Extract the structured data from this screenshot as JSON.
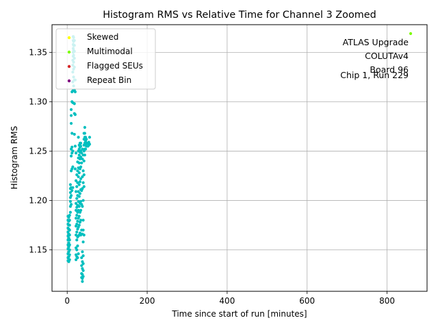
{
  "chart_data": {
    "type": "scatter",
    "title": "Histogram RMS vs Relative Time for Channel 3 Zoomed",
    "xlabel": "Time since start of run [minutes]",
    "ylabel": "Histogram RMS",
    "xlim": [
      -38,
      900
    ],
    "ylim": [
      1.108,
      1.378
    ],
    "xticks": [
      0,
      200,
      400,
      600,
      800
    ],
    "yticks": [
      1.15,
      1.2,
      1.25,
      1.3,
      1.35
    ],
    "xtick_labels": [
      "0",
      "200",
      "400",
      "600",
      "800"
    ],
    "ytick_labels": [
      "1.15",
      "1.20",
      "1.25",
      "1.30",
      "1.35"
    ],
    "grid": true,
    "legend_position": "top-left",
    "legend": [
      {
        "label": "Skewed",
        "color": "#ffff00"
      },
      {
        "label": "Multimodal",
        "color": "#7cfc00"
      },
      {
        "label": "Flagged SEUs",
        "color": "#d62728"
      },
      {
        "label": "Repeat Bin",
        "color": "#800080"
      }
    ],
    "annotation": [
      "ATLAS Upgrade",
      "COLUTAv4",
      "Board 96",
      "Chip 1, Run 229"
    ],
    "series": [
      {
        "color": "#00bfbf",
        "points": [
          [
            2,
            1.139
          ],
          [
            2,
            1.142
          ],
          [
            2,
            1.146
          ],
          [
            2,
            1.151
          ],
          [
            2,
            1.155
          ],
          [
            2,
            1.16
          ],
          [
            2,
            1.164
          ],
          [
            2,
            1.168
          ],
          [
            2,
            1.172
          ],
          [
            2,
            1.176
          ],
          [
            2,
            1.18
          ],
          [
            2,
            1.184
          ],
          [
            4,
            1.138
          ],
          [
            4,
            1.143
          ],
          [
            4,
            1.148
          ],
          [
            4,
            1.153
          ],
          [
            4,
            1.157
          ],
          [
            4,
            1.162
          ],
          [
            4,
            1.166
          ],
          [
            4,
            1.171
          ],
          [
            4,
            1.175
          ],
          [
            4,
            1.179
          ],
          [
            4,
            1.183
          ],
          [
            6,
            1.14
          ],
          [
            6,
            1.145
          ],
          [
            6,
            1.15
          ],
          [
            6,
            1.155
          ],
          [
            6,
            1.16
          ],
          [
            6,
            1.165
          ],
          [
            6,
            1.17
          ],
          [
            6,
            1.175
          ],
          [
            6,
            1.18
          ],
          [
            6,
            1.185
          ],
          [
            8,
            1.188
          ],
          [
            8,
            1.194
          ],
          [
            8,
            1.199
          ],
          [
            8,
            1.203
          ],
          [
            8,
            1.208
          ],
          [
            8,
            1.212
          ],
          [
            8,
            1.216
          ],
          [
            10,
            1.196
          ],
          [
            10,
            1.205
          ],
          [
            10,
            1.213
          ],
          [
            10,
            1.23
          ],
          [
            10,
            1.245
          ],
          [
            10,
            1.252
          ],
          [
            10,
            1.278
          ],
          [
            10,
            1.286
          ],
          [
            10,
            1.292
          ],
          [
            12,
            1.21
          ],
          [
            12,
            1.232
          ],
          [
            12,
            1.248
          ],
          [
            12,
            1.254
          ],
          [
            12,
            1.268
          ],
          [
            12,
            1.3
          ],
          [
            12,
            1.31
          ],
          [
            14,
            1.213
          ],
          [
            14,
            1.234
          ],
          [
            14,
            1.25
          ],
          [
            14,
            1.299
          ],
          [
            14,
            1.311
          ],
          [
            14,
            1.32
          ],
          [
            14,
            1.33
          ],
          [
            14,
            1.337
          ],
          [
            14,
            1.342
          ],
          [
            15,
            1.346
          ],
          [
            15,
            1.35
          ],
          [
            15,
            1.354
          ],
          [
            15,
            1.358
          ],
          [
            15,
            1.362
          ],
          [
            15,
            1.366
          ],
          [
            16,
            1.316
          ],
          [
            16,
            1.325
          ],
          [
            16,
            1.333
          ],
          [
            16,
            1.34
          ],
          [
            16,
            1.347
          ],
          [
            16,
            1.352
          ],
          [
            16,
            1.357
          ],
          [
            16,
            1.361
          ],
          [
            16,
            1.365
          ],
          [
            18,
            1.267
          ],
          [
            18,
            1.288
          ],
          [
            18,
            1.298
          ],
          [
            18,
            1.312
          ],
          [
            18,
            1.322
          ],
          [
            18,
            1.335
          ],
          [
            18,
            1.344
          ],
          [
            18,
            1.351
          ],
          [
            18,
            1.357
          ],
          [
            18,
            1.362
          ],
          [
            20,
            1.232
          ],
          [
            20,
            1.255
          ],
          [
            20,
            1.287
          ],
          [
            20,
            1.31
          ],
          [
            20,
            1.322
          ],
          [
            22,
            1.14
          ],
          [
            22,
            1.145
          ],
          [
            22,
            1.152
          ],
          [
            22,
            1.165
          ],
          [
            22,
            1.174
          ],
          [
            22,
            1.182
          ],
          [
            22,
            1.19
          ],
          [
            22,
            1.197
          ],
          [
            22,
            1.209
          ],
          [
            22,
            1.22
          ],
          [
            22,
            1.248
          ],
          [
            24,
            1.143
          ],
          [
            24,
            1.15
          ],
          [
            24,
            1.16
          ],
          [
            24,
            1.168
          ],
          [
            24,
            1.176
          ],
          [
            24,
            1.185
          ],
          [
            24,
            1.193
          ],
          [
            24,
            1.202
          ],
          [
            24,
            1.214
          ],
          [
            24,
            1.226
          ],
          [
            26,
            1.142
          ],
          [
            26,
            1.154
          ],
          [
            26,
            1.163
          ],
          [
            26,
            1.171
          ],
          [
            26,
            1.179
          ],
          [
            26,
            1.188
          ],
          [
            26,
            1.195
          ],
          [
            26,
            1.205
          ],
          [
            26,
            1.218
          ],
          [
            26,
            1.23
          ],
          [
            26,
            1.239
          ],
          [
            28,
            1.146
          ],
          [
            28,
            1.164
          ],
          [
            28,
            1.173
          ],
          [
            28,
            1.182
          ],
          [
            28,
            1.19
          ],
          [
            28,
            1.199
          ],
          [
            28,
            1.209
          ],
          [
            28,
            1.224
          ],
          [
            28,
            1.233
          ],
          [
            28,
            1.243
          ],
          [
            28,
            1.25
          ],
          [
            28,
            1.264
          ],
          [
            30,
            1.165
          ],
          [
            30,
            1.175
          ],
          [
            30,
            1.184
          ],
          [
            30,
            1.194
          ],
          [
            30,
            1.204
          ],
          [
            30,
            1.216
          ],
          [
            30,
            1.228
          ],
          [
            30,
            1.238
          ],
          [
            30,
            1.246
          ],
          [
            30,
            1.252
          ],
          [
            30,
            1.256
          ],
          [
            32,
            1.167
          ],
          [
            32,
            1.178
          ],
          [
            32,
            1.188
          ],
          [
            32,
            1.197
          ],
          [
            32,
            1.207
          ],
          [
            32,
            1.219
          ],
          [
            32,
            1.232
          ],
          [
            32,
            1.242
          ],
          [
            32,
            1.249
          ],
          [
            32,
            1.254
          ],
          [
            32,
            1.258
          ],
          [
            34,
            1.165
          ],
          [
            34,
            1.18
          ],
          [
            34,
            1.19
          ],
          [
            34,
            1.199
          ],
          [
            34,
            1.211
          ],
          [
            34,
            1.222
          ],
          [
            34,
            1.234
          ],
          [
            34,
            1.244
          ],
          [
            34,
            1.25
          ],
          [
            34,
            1.255
          ],
          [
            34,
            1.258
          ],
          [
            36,
            1.122
          ],
          [
            36,
            1.126
          ],
          [
            36,
            1.134
          ],
          [
            36,
            1.142
          ],
          [
            36,
            1.17
          ],
          [
            36,
            1.196
          ],
          [
            36,
            1.21
          ],
          [
            36,
            1.238
          ],
          [
            36,
            1.248
          ],
          [
            38,
            1.118
          ],
          [
            38,
            1.121
          ],
          [
            38,
            1.125
          ],
          [
            38,
            1.131
          ],
          [
            38,
            1.138
          ],
          [
            38,
            1.148
          ],
          [
            38,
            1.166
          ],
          [
            38,
            1.194
          ],
          [
            38,
            1.212
          ],
          [
            38,
            1.224
          ],
          [
            38,
            1.242
          ],
          [
            38,
            1.252
          ],
          [
            40,
            1.123
          ],
          [
            40,
            1.129
          ],
          [
            40,
            1.136
          ],
          [
            40,
            1.144
          ],
          [
            40,
            1.158
          ],
          [
            40,
            1.17
          ],
          [
            40,
            1.18
          ],
          [
            40,
            1.2
          ],
          [
            40,
            1.218
          ],
          [
            40,
            1.23
          ],
          [
            40,
            1.246
          ],
          [
            42,
            1.165
          ],
          [
            42,
            1.214
          ],
          [
            42,
            1.226
          ],
          [
            42,
            1.24
          ],
          [
            42,
            1.25
          ],
          [
            42,
            1.256
          ],
          [
            42,
            1.262
          ],
          [
            42,
            1.268
          ],
          [
            44,
            1.246
          ],
          [
            44,
            1.252
          ],
          [
            44,
            1.258
          ],
          [
            44,
            1.264
          ],
          [
            44,
            1.268
          ],
          [
            44,
            1.274
          ],
          [
            46,
            1.252
          ],
          [
            46,
            1.256
          ],
          [
            46,
            1.26
          ],
          [
            46,
            1.264
          ],
          [
            48,
            1.255
          ],
          [
            48,
            1.258
          ],
          [
            48,
            1.262
          ],
          [
            50,
            1.255
          ],
          [
            50,
            1.258
          ],
          [
            52,
            1.255
          ],
          [
            52,
            1.258
          ],
          [
            54,
            1.256
          ],
          [
            54,
            1.259
          ],
          [
            56,
            1.257
          ],
          [
            56,
            1.264
          ]
        ]
      },
      {
        "color": "#7cfc00",
        "points": [
          [
            859,
            1.369
          ]
        ]
      }
    ]
  }
}
